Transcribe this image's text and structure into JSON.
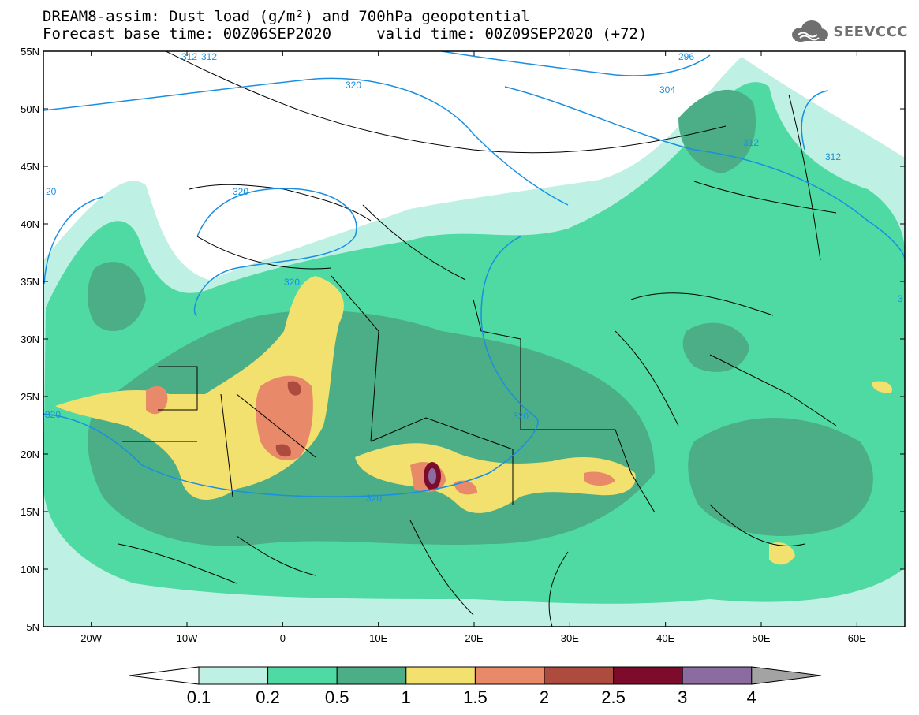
{
  "header": {
    "line1": "DREAM8-assim: Dust load (g/m²) and 700hPa geopotential",
    "line2": "Forecast base time: 00Z06SEP2020     valid time: 00Z09SEP2020 (+72)"
  },
  "logo": {
    "text": "SEEVCCC",
    "icon": "cloud-icon"
  },
  "map": {
    "lat_labels": [
      "55N",
      "50N",
      "45N",
      "40N",
      "35N",
      "30N",
      "25N",
      "20N",
      "15N",
      "10N",
      "5N"
    ],
    "lon_labels": [
      "20W",
      "10W",
      "0",
      "10E",
      "20E",
      "30E",
      "40E",
      "50E",
      "60E"
    ],
    "contour_labels": [
      "296",
      "304",
      "312",
      "312",
      "312",
      "320",
      "320",
      "320",
      "320",
      "320",
      "320",
      "312",
      "20",
      "3"
    ]
  },
  "colorbar": {
    "ticks": [
      "0.1",
      "0.2",
      "0.5",
      "1",
      "1.5",
      "2",
      "2.5",
      "3",
      "4"
    ],
    "colors": [
      "#bff0e4",
      "#4fd9a3",
      "#4bae86",
      "#f2e16e",
      "#e8896a",
      "#ad4b3e",
      "#7d0b2b",
      "#8b6ba0",
      "#a3a3a3"
    ]
  },
  "colors": {
    "light": "#bff0e4",
    "mid": "#4fd9a3",
    "dark": "#4bae86",
    "yellow": "#f2e16e",
    "orange": "#e8896a",
    "brown": "#ad4b3e",
    "maroon": "#7d0b2b",
    "purple": "#8b6ba0",
    "contour": "#1a8fe0"
  }
}
